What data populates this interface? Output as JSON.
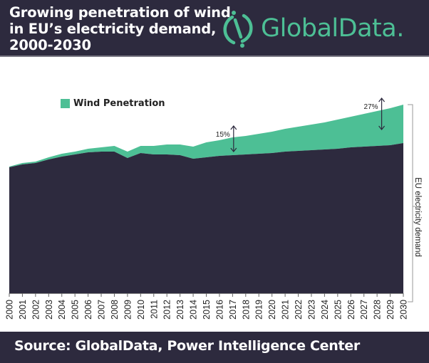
{
  "header": {
    "title_lines": [
      "Growing penetration of wind",
      "in EU’s electricity demand,",
      "2000-2030"
    ],
    "logo_text": "GlobalData.",
    "logo_icon": "globaldata-logo-icon"
  },
  "footer": {
    "source": "Source:  GlobalData, Power Intelligence Center"
  },
  "colors": {
    "demand": "#2d2a3e",
    "wind": "#4dbf95",
    "header_bg": "#2d2a3e",
    "logo": "#4dbf95"
  },
  "chart_data": {
    "type": "area",
    "stacked": true,
    "title": "Growing penetration of wind in EU’s electricity demand, 2000-2030",
    "xlabel": "",
    "ylabel": "EU electricity demand",
    "y_units": "relative index (no scale shown)",
    "grid": false,
    "legend_position": "top-left",
    "legend": [
      "Wind Penetration"
    ],
    "x": [
      "2000",
      "2001",
      "2002",
      "2003",
      "2004",
      "2005",
      "2006",
      "2007",
      "2008",
      "2009",
      "2010",
      "2011",
      "2012",
      "2013",
      "2014",
      "2015",
      "2016",
      "2017",
      "2018",
      "2019",
      "2020",
      "2021",
      "2022",
      "2023",
      "2024",
      "2025",
      "2026",
      "2027",
      "2028",
      "2029",
      "2030"
    ],
    "series": [
      {
        "name": "EU electricity demand (non-wind)",
        "values": [
          177,
          181,
          183,
          188,
          192,
          195,
          198,
          199,
          199,
          190,
          197,
          195,
          195,
          194,
          189,
          191,
          193,
          194,
          195,
          196,
          197,
          199,
          200,
          201,
          202,
          203,
          205,
          206,
          207,
          208,
          211
        ]
      },
      {
        "name": "Wind Penetration",
        "values": [
          1,
          2,
          2,
          3,
          4,
          4,
          5,
          6,
          8,
          9,
          10,
          12,
          14,
          15,
          17,
          21,
          22,
          25,
          26,
          28,
          30,
          32,
          34,
          36,
          38,
          41,
          43,
          46,
          49,
          52,
          54
        ]
      }
    ],
    "ylim": [
      0,
      275
    ],
    "annotations": [
      {
        "text": "15%",
        "x": "2018"
      },
      {
        "text": "27%",
        "x": "2029"
      }
    ]
  }
}
